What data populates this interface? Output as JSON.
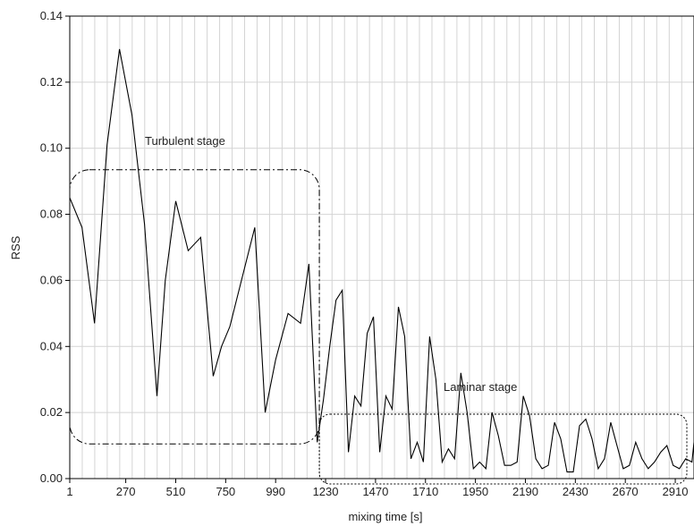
{
  "chart_data": {
    "type": "line",
    "title": "",
    "xlabel": "mixing time [s]",
    "ylabel": "RSS",
    "xlim": [
      1,
      3000
    ],
    "ylim": [
      0,
      0.14
    ],
    "grid": true,
    "x_tick_labels": [
      "1",
      "270",
      "510",
      "750",
      "990",
      "1230",
      "1470",
      "1710",
      "1950",
      "2190",
      "2430",
      "2670",
      "2910"
    ],
    "y_tick_labels": [
      "0.00",
      "0.02",
      "0.04",
      "0.06",
      "0.08",
      "0.10",
      "0.12",
      "0.14"
    ],
    "annotations": [
      {
        "text": "Turbulent stage",
        "region": {
          "x": [
            1,
            1200
          ],
          "y": [
            0.0105,
            0.0935
          ]
        }
      },
      {
        "text": "Laminar stage",
        "region": {
          "x": [
            1200,
            3000
          ],
          "y": [
            0.0,
            0.0195
          ]
        }
      }
    ],
    "series": [
      {
        "color": "#000000",
        "x": [
          1,
          60,
          120,
          180,
          240,
          300,
          360,
          420,
          460,
          510,
          570,
          630,
          690,
          730,
          770,
          830,
          890,
          940,
          990,
          1050,
          1110,
          1150,
          1190,
          1220,
          1250,
          1280,
          1310,
          1340,
          1370,
          1400,
          1430,
          1460,
          1490,
          1520,
          1550,
          1580,
          1610,
          1640,
          1670,
          1700,
          1730,
          1760,
          1790,
          1820,
          1850,
          1880,
          1910,
          1940,
          1970,
          2000,
          2030,
          2060,
          2090,
          2120,
          2150,
          2180,
          2210,
          2240,
          2270,
          2300,
          2330,
          2360,
          2390,
          2420,
          2450,
          2480,
          2510,
          2540,
          2570,
          2600,
          2630,
          2660,
          2690,
          2720,
          2750,
          2780,
          2810,
          2840,
          2870,
          2900,
          2930,
          2960,
          2990,
          3000
        ],
        "y": [
          0.085,
          0.076,
          0.047,
          0.101,
          0.13,
          0.11,
          0.077,
          0.025,
          0.06,
          0.084,
          0.069,
          0.073,
          0.031,
          0.04,
          0.046,
          0.061,
          0.076,
          0.02,
          0.036,
          0.05,
          0.047,
          0.065,
          0.011,
          0.024,
          0.04,
          0.054,
          0.057,
          0.008,
          0.025,
          0.022,
          0.044,
          0.049,
          0.008,
          0.025,
          0.021,
          0.052,
          0.043,
          0.006,
          0.011,
          0.005,
          0.043,
          0.03,
          0.005,
          0.009,
          0.006,
          0.032,
          0.02,
          0.003,
          0.005,
          0.003,
          0.02,
          0.013,
          0.004,
          0.004,
          0.005,
          0.025,
          0.019,
          0.006,
          0.003,
          0.004,
          0.017,
          0.012,
          0.002,
          0.002,
          0.016,
          0.018,
          0.012,
          0.003,
          0.006,
          0.017,
          0.01,
          0.003,
          0.004,
          0.011,
          0.006,
          0.003,
          0.005,
          0.008,
          0.01,
          0.004,
          0.003,
          0.006,
          0.005,
          0.011
        ]
      }
    ]
  }
}
